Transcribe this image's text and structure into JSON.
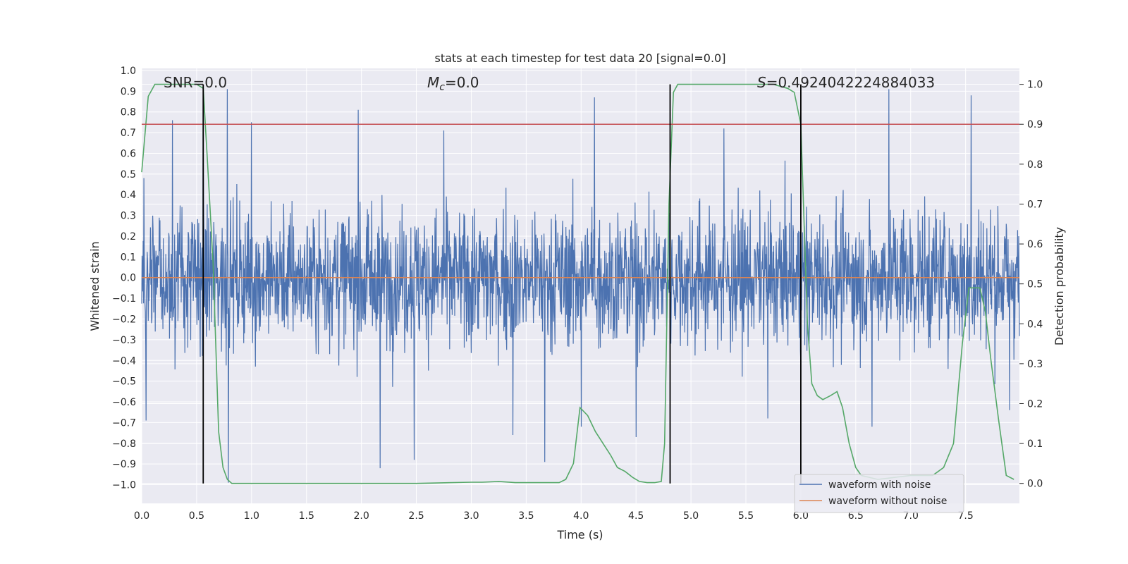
{
  "chart_data": {
    "type": "line",
    "title": "stats at each timestep for test data 20 [signal=0.0]",
    "xlabel": "Time (s)",
    "ylabel": "Whitened strain",
    "y2label": "Detection probability",
    "xlim": [
      0.0,
      7.99
    ],
    "ylim": [
      -1.09,
      1.01
    ],
    "y2lim": [
      -0.05,
      1.04
    ],
    "xticks": [
      "0.0",
      "0.5",
      "1.0",
      "1.5",
      "2.0",
      "2.5",
      "3.0",
      "3.5",
      "4.0",
      "4.5",
      "5.0",
      "5.5",
      "6.0",
      "6.5",
      "7.0",
      "7.5"
    ],
    "yticks": [
      "1.0",
      "0.9",
      "0.8",
      "0.7",
      "0.6",
      "0.5",
      "0.4",
      "0.3",
      "0.2",
      "0.1",
      "0.0",
      "−0.1",
      "−0.2",
      "−0.3",
      "−0.4",
      "−0.5",
      "−0.6",
      "−0.7",
      "−0.8",
      "−0.9",
      "−1.0"
    ],
    "y2ticks": [
      "0.0",
      "0.1",
      "0.2",
      "0.3",
      "0.4",
      "0.5",
      "0.6",
      "0.7",
      "0.8",
      "0.9",
      "1.0"
    ],
    "grid": true,
    "legend_position": "lower-right",
    "annotations": {
      "snr": "SNR=0.0",
      "mc_symbol": "M",
      "mc_sub": "c",
      "mc_value": "=0.0",
      "s_symbol": "S",
      "s_value": "=0.4924042224884033"
    },
    "colors": {
      "noisy": "#4c72b0",
      "clean": "#dd8452",
      "probability": "#55a868",
      "threshold": "#c44e52",
      "marker": "#000000",
      "background": "#eaeaf2",
      "grid": "#ffffff"
    },
    "series": [
      {
        "name": "waveform with noise",
        "noise_envelope": {
          "typical_amplitude": 0.3,
          "peak_max": 0.91,
          "trough_min": -0.99
        },
        "notable_peaks": [
          [
            0.28,
            0.76
          ],
          [
            0.56,
            0.87
          ],
          [
            0.78,
            0.91
          ],
          [
            1.0,
            0.75
          ],
          [
            1.97,
            0.81
          ],
          [
            2.75,
            0.71
          ],
          [
            4.12,
            0.87
          ],
          [
            5.3,
            0.72
          ],
          [
            6.8,
            0.91
          ],
          [
            7.55,
            0.88
          ]
        ],
        "notable_troughs": [
          [
            0.04,
            -0.69
          ],
          [
            0.79,
            -0.99
          ],
          [
            2.17,
            -0.92
          ],
          [
            2.48,
            -0.88
          ],
          [
            3.38,
            -0.76
          ],
          [
            3.67,
            -0.89
          ],
          [
            4.0,
            -0.72
          ],
          [
            4.5,
            -0.77
          ],
          [
            5.7,
            -0.68
          ],
          [
            6.65,
            -0.72
          ],
          [
            7.9,
            -0.64
          ]
        ]
      },
      {
        "name": "waveform without noise",
        "x": [
          0.0,
          7.99
        ],
        "y": [
          0.0,
          0.0
        ]
      },
      {
        "name": "detection probability",
        "axis": "right",
        "x": [
          0.0,
          0.06,
          0.12,
          0.2,
          0.3,
          0.4,
          0.5,
          0.56,
          0.6,
          0.65,
          0.7,
          0.74,
          0.78,
          0.82,
          1.0,
          1.5,
          2.0,
          2.5,
          3.0,
          3.1,
          3.25,
          3.4,
          3.6,
          3.8,
          3.86,
          3.93,
          3.99,
          4.06,
          4.13,
          4.2,
          4.27,
          4.33,
          4.4,
          4.47,
          4.53,
          4.6,
          4.67,
          4.73,
          4.76,
          4.8,
          4.84,
          4.88,
          5.0,
          5.5,
          5.75,
          5.88,
          5.94,
          6.0,
          6.06,
          6.1,
          6.15,
          6.2,
          6.27,
          6.33,
          6.38,
          6.44,
          6.5,
          6.55,
          6.7,
          7.0,
          7.2,
          7.3,
          7.39,
          7.47,
          7.53,
          7.58,
          7.63,
          7.68,
          7.73,
          7.8,
          7.87,
          7.94
        ],
        "y": [
          0.78,
          0.97,
          1.0,
          1.0,
          1.0,
          1.0,
          1.0,
          0.99,
          0.8,
          0.55,
          0.13,
          0.04,
          0.01,
          0.0,
          0.0,
          0.0,
          0.0,
          0.0,
          0.003,
          0.003,
          0.005,
          0.002,
          0.002,
          0.002,
          0.01,
          0.05,
          0.19,
          0.17,
          0.13,
          0.1,
          0.07,
          0.04,
          0.03,
          0.015,
          0.005,
          0.002,
          0.002,
          0.005,
          0.1,
          0.7,
          0.98,
          1.0,
          1.0,
          1.0,
          1.0,
          0.99,
          0.98,
          0.9,
          0.4,
          0.25,
          0.22,
          0.21,
          0.22,
          0.23,
          0.19,
          0.1,
          0.04,
          0.02,
          0.01,
          0.02,
          0.02,
          0.04,
          0.1,
          0.35,
          0.49,
          0.49,
          0.49,
          0.43,
          0.31,
          0.16,
          0.02,
          0.01
        ]
      },
      {
        "name": "threshold",
        "axis": "right",
        "x": [
          0.0,
          7.99
        ],
        "y": [
          0.9,
          0.9
        ]
      }
    ],
    "vertical_markers": [
      {
        "x": 0.56,
        "y2_range": [
          0.0,
          1.0
        ]
      },
      {
        "x": 4.81,
        "y2_range": [
          0.0,
          1.0
        ]
      },
      {
        "x": 6.0,
        "y2_range": [
          0.0,
          1.0
        ]
      }
    ]
  }
}
